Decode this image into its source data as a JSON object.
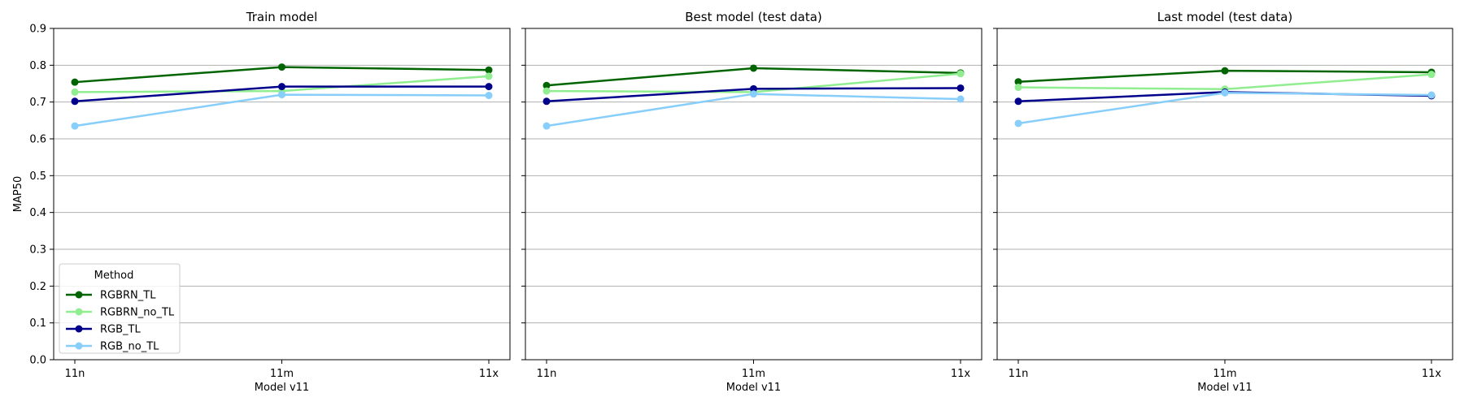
{
  "chart_data": [
    {
      "type": "line",
      "title": "Train model",
      "xlabel": "Model v11",
      "ylabel": "MAP50",
      "categories": [
        "11n",
        "11m",
        "11x"
      ],
      "ylim": [
        0.0,
        0.9
      ],
      "yticks": [
        "0.0",
        "0.1",
        "0.2",
        "0.3",
        "0.4",
        "0.5",
        "0.6",
        "0.7",
        "0.8",
        "0.9"
      ],
      "grid": "horizontal",
      "legend": "bottom-left",
      "series": [
        {
          "name": "RGBRN_TL",
          "color": "#006400",
          "values": [
            0.754,
            0.795,
            0.787
          ]
        },
        {
          "name": "RGBRN_no_TL",
          "color": "#90ee90",
          "values": [
            0.727,
            0.73,
            0.77
          ]
        },
        {
          "name": "RGB_TL",
          "color": "#00008b",
          "values": [
            0.702,
            0.742,
            0.742
          ]
        },
        {
          "name": "RGB_no_TL",
          "color": "#87cefa",
          "values": [
            0.635,
            0.72,
            0.718
          ]
        }
      ]
    },
    {
      "type": "line",
      "title": "Best model (test data)",
      "xlabel": "Model v11",
      "ylabel": "",
      "categories": [
        "11n",
        "11m",
        "11x"
      ],
      "ylim": [
        0.0,
        0.9
      ],
      "grid": "horizontal",
      "series": [
        {
          "name": "RGBRN_TL",
          "color": "#006400",
          "values": [
            0.745,
            0.792,
            0.779
          ]
        },
        {
          "name": "RGBRN_no_TL",
          "color": "#90ee90",
          "values": [
            0.73,
            0.727,
            0.777
          ]
        },
        {
          "name": "RGB_TL",
          "color": "#00008b",
          "values": [
            0.702,
            0.736,
            0.738
          ]
        },
        {
          "name": "RGB_no_TL",
          "color": "#87cefa",
          "values": [
            0.635,
            0.722,
            0.708
          ]
        }
      ]
    },
    {
      "type": "line",
      "title": "Last model (test data)",
      "xlabel": "Model v11",
      "ylabel": "",
      "categories": [
        "11n",
        "11m",
        "11x"
      ],
      "ylim": [
        0.0,
        0.9
      ],
      "grid": "horizontal",
      "series": [
        {
          "name": "RGBRN_TL",
          "color": "#006400",
          "values": [
            0.755,
            0.785,
            0.781
          ]
        },
        {
          "name": "RGBRN_no_TL",
          "color": "#90ee90",
          "values": [
            0.74,
            0.735,
            0.775
          ]
        },
        {
          "name": "RGB_TL",
          "color": "#00008b",
          "values": [
            0.702,
            0.727,
            0.717
          ]
        },
        {
          "name": "RGB_no_TL",
          "color": "#87cefa",
          "values": [
            0.642,
            0.725,
            0.719
          ]
        }
      ]
    }
  ],
  "legend": {
    "title": "Method",
    "entries": [
      "RGBRN_TL",
      "RGBRN_no_TL",
      "RGB_TL",
      "RGB_no_TL"
    ]
  }
}
